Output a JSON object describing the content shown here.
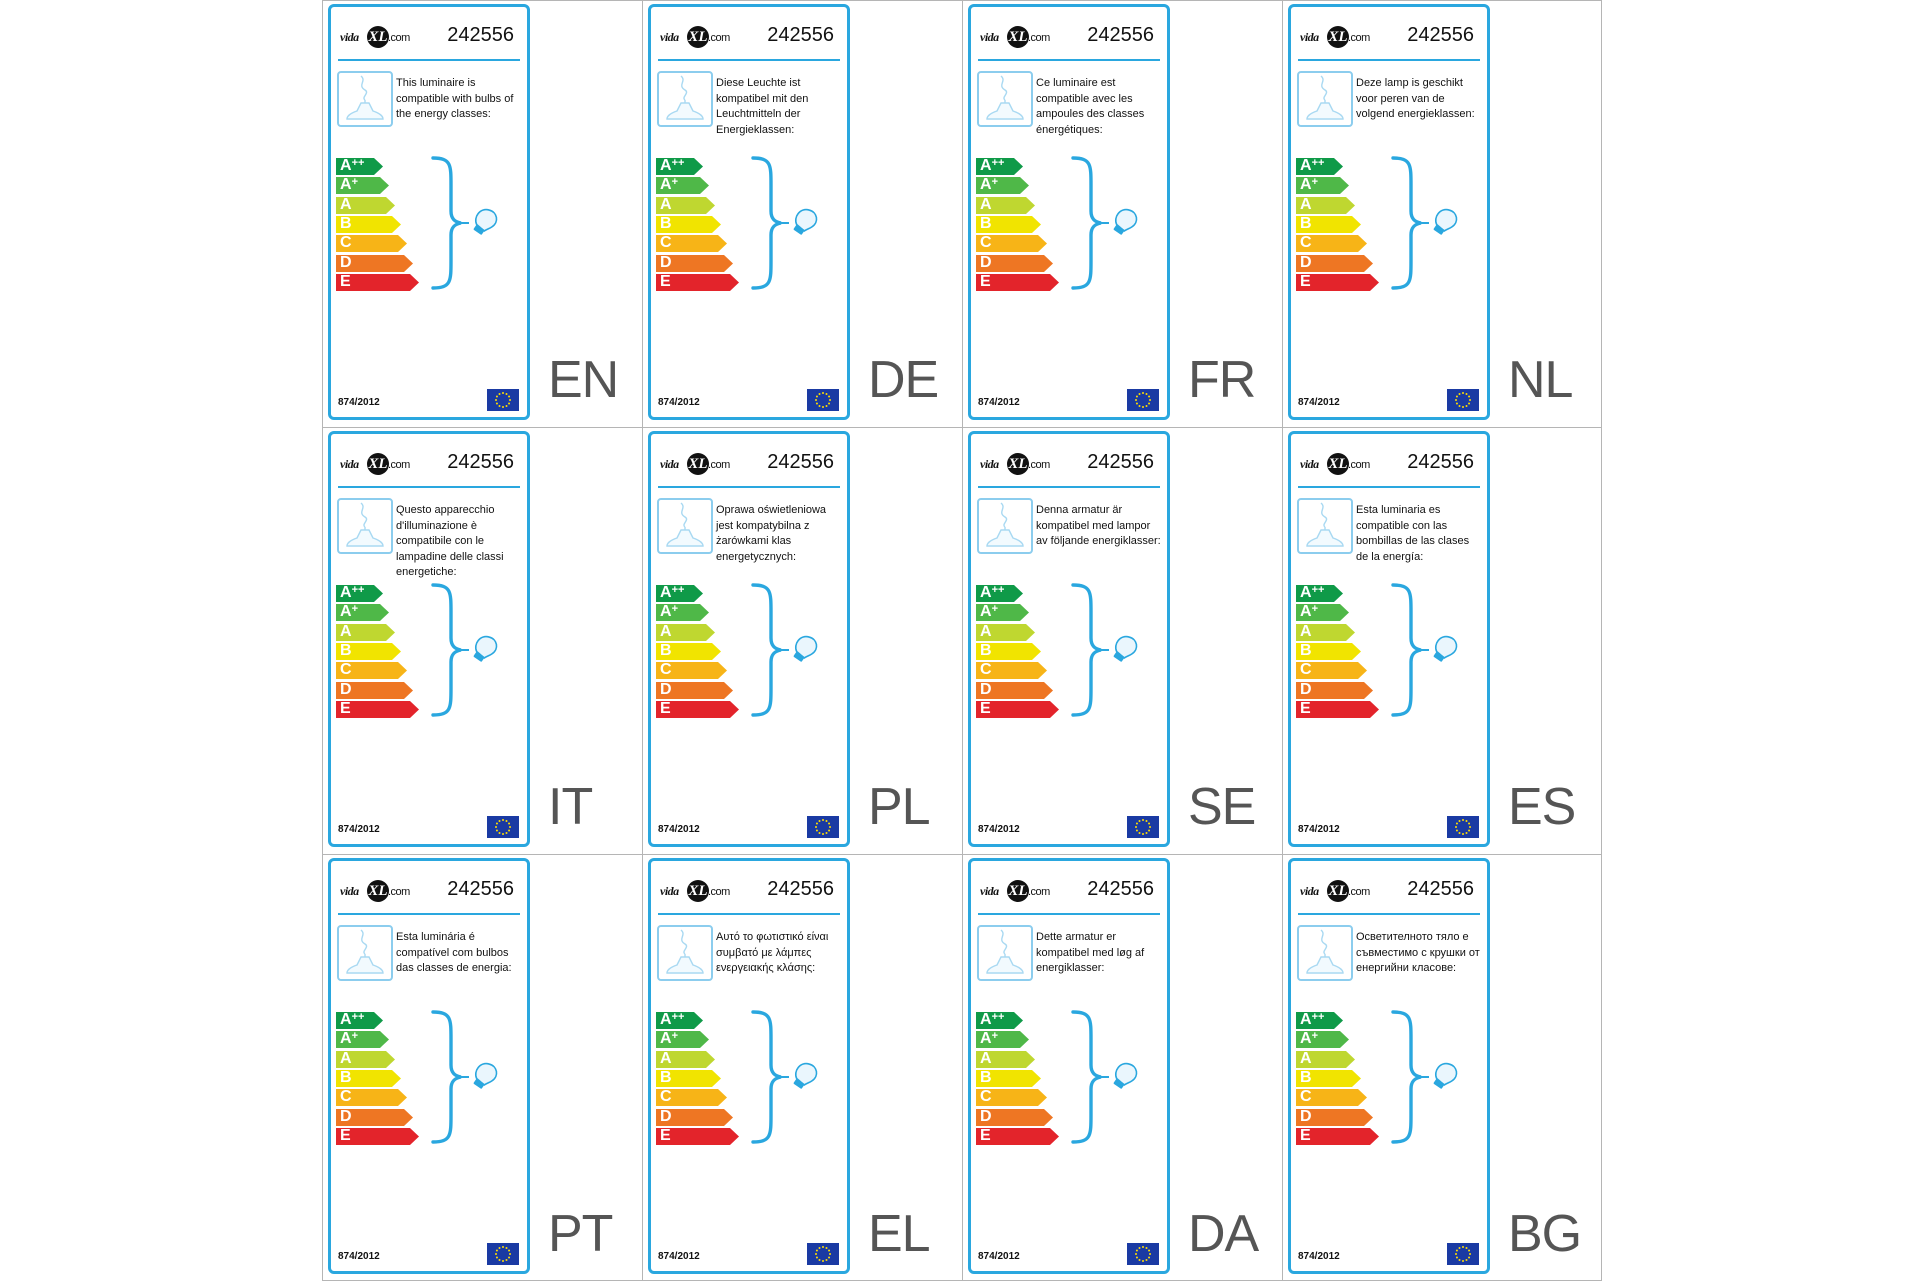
{
  "brand": {
    "prefix": "vida",
    "mark": "XL",
    "suffix": ".com"
  },
  "product_code": "242556",
  "regulation": "874/2012",
  "energy_classes": [
    {
      "letter": "A",
      "sup": "++",
      "color": "#0f9a48"
    },
    {
      "letter": "A",
      "sup": "+",
      "color": "#4fb848"
    },
    {
      "letter": "A",
      "sup": "",
      "color": "#bfd730"
    },
    {
      "letter": "B",
      "sup": "",
      "color": "#f1e400"
    },
    {
      "letter": "C",
      "sup": "",
      "color": "#f7b417"
    },
    {
      "letter": "D",
      "sup": "",
      "color": "#ee7623"
    },
    {
      "letter": "E",
      "sup": "",
      "color": "#e3242b"
    }
  ],
  "colors": {
    "label_border": "#2aa7df",
    "grid_lines": "#b5b5b5",
    "eu_flag": "#1a3aa3",
    "eu_stars": "#ffdd00"
  },
  "icons": {
    "luminaire": "pendant-lamp-icon",
    "bulb": "light-bulb-icon",
    "flag": "eu-flag-icon",
    "brace": "curly-brace-icon"
  },
  "labels": [
    {
      "lang": "EN",
      "text": "This luminaire is compatible with bulbs of the energy classes:"
    },
    {
      "lang": "DE",
      "text": "Diese Leuchte ist kompatibel mit den Leuchtmitteln der Energieklassen:"
    },
    {
      "lang": "FR",
      "text": "Ce luminaire est compatible avec les ampoules des classes énergétiques:"
    },
    {
      "lang": "NL",
      "text": "Deze lamp is geschikt voor peren van de volgend energieklassen:"
    },
    {
      "lang": "IT",
      "text": "Questo apparecchio d'illuminazione è compatibile con le lampadine delle classi energetiche:"
    },
    {
      "lang": "PL",
      "text": "Oprawa oświetleniowa jest kompatybilna z żarówkami klas energetycznych:"
    },
    {
      "lang": "SE",
      "text": "Denna armatur är kompatibel med lampor av följande energiklasser:"
    },
    {
      "lang": "ES",
      "text": "Esta luminaria es compatible con las bombillas de las clases de la energía:"
    },
    {
      "lang": "PT",
      "text": "Esta luminária é compatível com bulbos das classes de energia:"
    },
    {
      "lang": "EL",
      "text": "Αυτό το φωτιστικό είναι συμβατό με λάμπες ενεργειακής κλάσης:"
    },
    {
      "lang": "DA",
      "text": "Dette armatur er kompatibel med løg af energiklasser:"
    },
    {
      "lang": "BG",
      "text": "Осветителното тяло е съвместимо с крушки от енергийни класове:"
    }
  ]
}
